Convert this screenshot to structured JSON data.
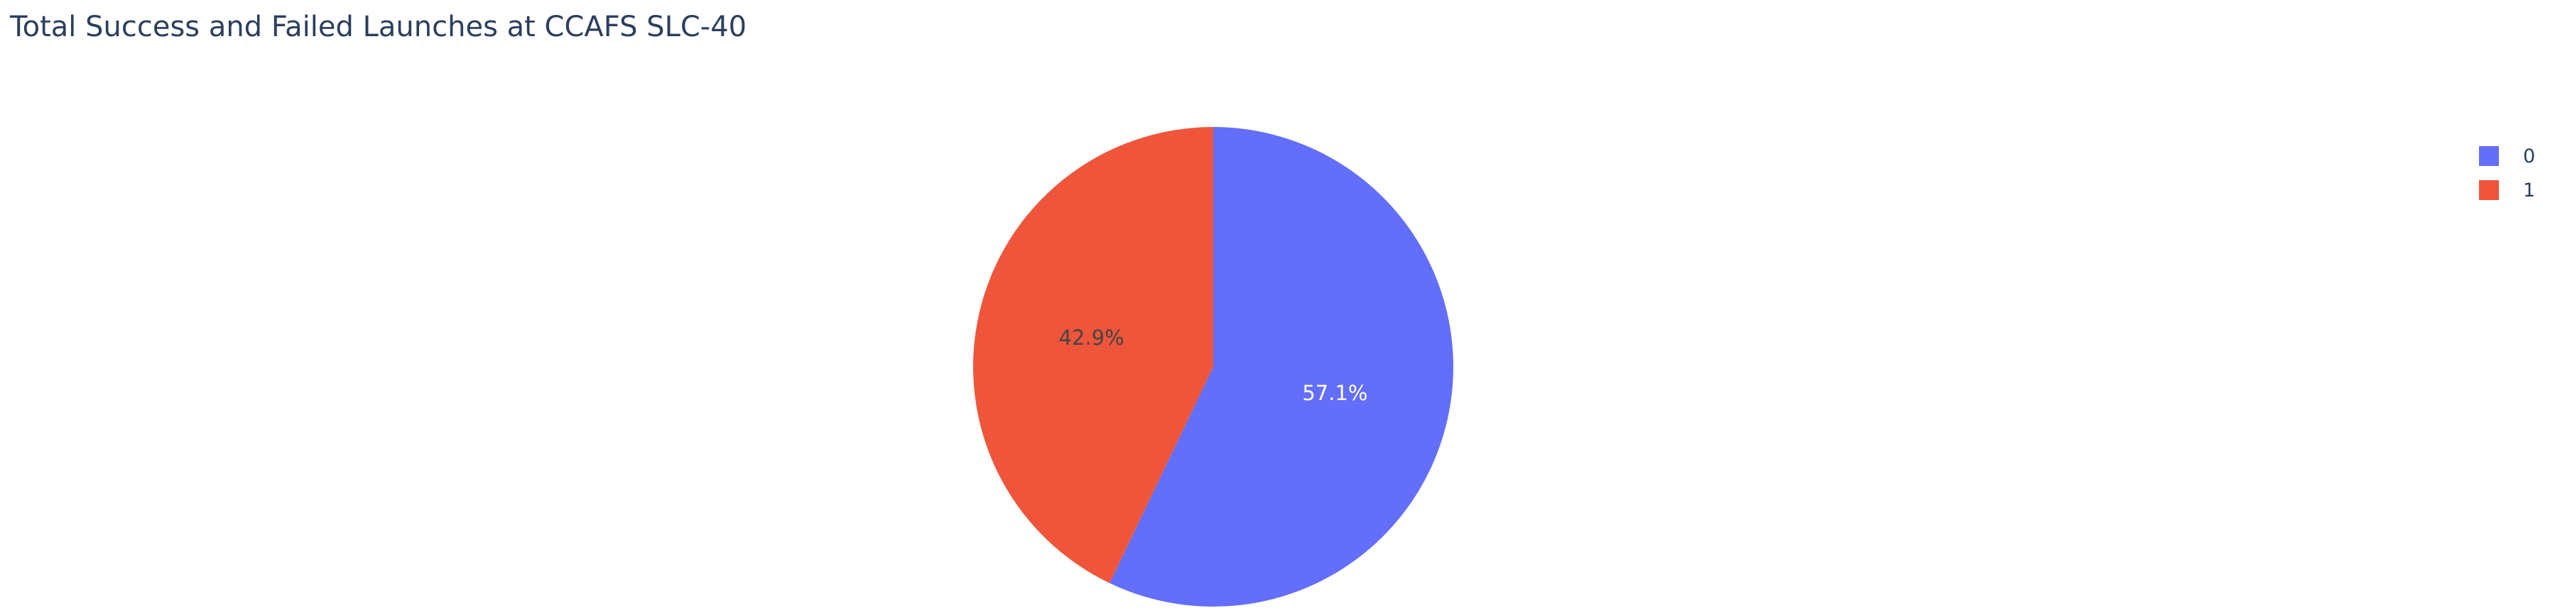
{
  "chart_data": {
    "type": "pie",
    "title": "Total Success and Failed Launches at CCAFS SLC-40",
    "slices": [
      {
        "label": "0",
        "percent": 57.1,
        "percent_label": "57.1%",
        "color": "#636efa",
        "text_color": "#ffffff"
      },
      {
        "label": "1",
        "percent": 42.9,
        "percent_label": "42.9%",
        "color": "#ef553b",
        "text_color": "#444444"
      }
    ],
    "legend_position": "top-right",
    "direction": "clockwise",
    "start": "top"
  }
}
